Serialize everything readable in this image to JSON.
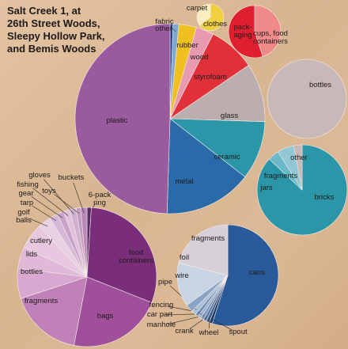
{
  "chart_data": [
    {
      "type": "pie",
      "title": "Salt Creek 1, at\n26th Street Woods,\nSleepy Hollow Park,\nand Bemis Woods",
      "categories": [
        "other",
        "fabric",
        "rubber",
        "wood",
        "styrofoam",
        "glass",
        "ceramic",
        "metal",
        "plastic"
      ],
      "values": [
        0.5,
        1,
        3,
        3,
        8,
        10,
        10,
        15,
        49.5
      ],
      "colors": [
        "#1f3f8a",
        "#7fa8d0",
        "#f0c020",
        "#e89ab0",
        "#e0303a",
        "#bcaeae",
        "#2a96a8",
        "#2a6aa8",
        "#9a5a9e"
      ]
    },
    {
      "type": "pie",
      "categories": [
        "carpet",
        "clothes"
      ],
      "values": [
        65,
        35
      ],
      "colors": [
        "#f0d040",
        "#f8eec0"
      ]
    },
    {
      "type": "pie",
      "categories": [
        "pack-aging",
        "cups, food containers"
      ],
      "values": [
        45,
        55
      ],
      "colors": [
        "#f08a88",
        "#e02030"
      ]
    },
    {
      "type": "pie",
      "categories": [
        "bottles"
      ],
      "values": [
        100
      ],
      "colors": [
        "#c8b8b8"
      ]
    },
    {
      "type": "pie",
      "categories": [
        "bricks",
        "jars",
        "fragments",
        "other"
      ],
      "values": [
        87,
        4,
        6,
        3
      ],
      "colors": [
        "#2a96a8",
        "#6ab8c8",
        "#8fc8d4",
        "#c8b8b8"
      ]
    },
    {
      "type": "pie",
      "categories": [
        "6-pack ring",
        "food containers",
        "bags",
        "fragments",
        "bottles",
        "lids",
        "cutlery",
        "golf balls",
        "tarp",
        "gear",
        "fishing",
        "gloves",
        "toys",
        "buckets"
      ],
      "values": [
        1,
        30,
        22,
        17,
        7,
        5,
        6,
        3,
        2,
        1.5,
        1.5,
        1.5,
        1,
        1.5
      ],
      "colors": [
        "#5a2a6a",
        "#7a2e7a",
        "#a0509a",
        "#c080b8",
        "#d8a8d0",
        "#e0b8d8",
        "#e8c8e0",
        "#e8d0e4",
        "#d8b8d8",
        "#c8a0c8",
        "#e0c0dc",
        "#d0b0d0",
        "#c098c0",
        "#b888b8"
      ]
    },
    {
      "type": "pie",
      "categories": [
        "cans",
        "spout",
        "wheel",
        "crank",
        "manhole",
        "car part",
        "fencing",
        "pipe",
        "wire",
        "foil",
        "fragments"
      ],
      "values": [
        55,
        1,
        1,
        1,
        1,
        1,
        1,
        1.5,
        2.5,
        14,
        21
      ],
      "colors": [
        "#2a5a9a",
        "#1a3a6a",
        "#3a5a8a",
        "#5a7aa8",
        "#7a98c0",
        "#9ab0d0",
        "#6a88b0",
        "#aac0d8",
        "#8aa4c8",
        "#c8d4e4",
        "#d8d0d8"
      ]
    }
  ]
}
